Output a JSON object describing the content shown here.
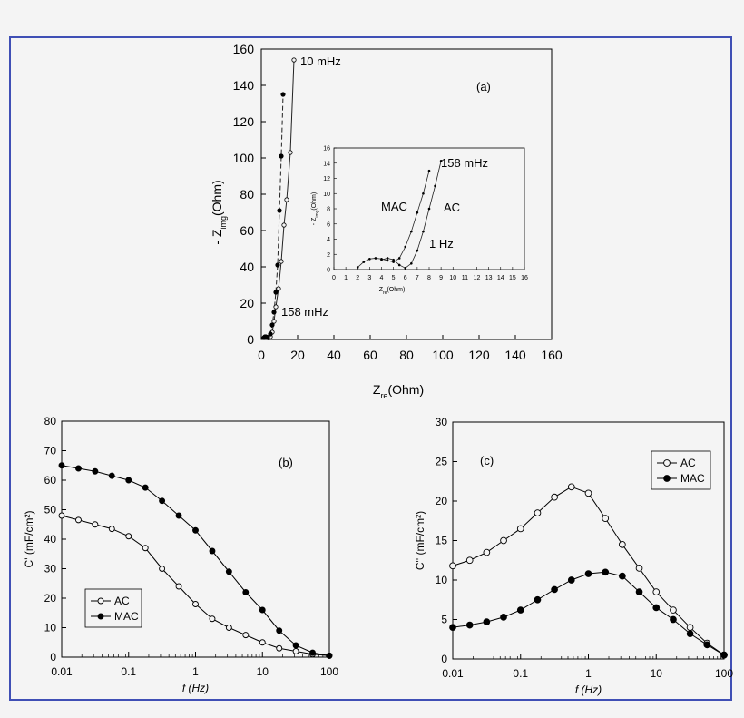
{
  "figure": {
    "frame_color": "#3f4fb5",
    "background": "#f4f4f4"
  },
  "chart_data": [
    {
      "id": "a",
      "type": "line",
      "panel_label": "(a)",
      "xlabel_main": "Z",
      "xlabel_sub": "re",
      "xlabel_unit": "(Ohm)",
      "ylabel_main": "- Z",
      "ylabel_sub": "img",
      "ylabel_unit": "(Ohm)",
      "xlim": [
        0,
        160
      ],
      "ylim": [
        0,
        160
      ],
      "xticks": [
        0,
        20,
        40,
        60,
        80,
        100,
        120,
        140,
        160
      ],
      "yticks": [
        0,
        20,
        40,
        60,
        80,
        100,
        120,
        140,
        160
      ],
      "series": [
        {
          "name": "AC",
          "marker": "open",
          "x": [
            2,
            3,
            4,
            5,
            6,
            7,
            8,
            9.5,
            11,
            12.5,
            14,
            16,
            18
          ],
          "y": [
            1.5,
            1.2,
            0.8,
            1.5,
            4,
            10,
            18,
            28,
            43,
            63,
            77,
            103,
            154
          ]
        },
        {
          "name": "MAC",
          "marker": "filled",
          "x": [
            1.5,
            2.5,
            3.5,
            5,
            6,
            7,
            8,
            9,
            10,
            11,
            12
          ],
          "y": [
            1,
            1.5,
            1.2,
            3,
            8,
            15,
            26,
            41,
            71,
            101,
            135
          ]
        }
      ],
      "annotations": [
        {
          "text": "10 mHz"
        },
        {
          "text": "158 mHz"
        }
      ],
      "inset": {
        "xlabel_main": "Z",
        "xlabel_sub": "re",
        "xlabel_unit": "(Ohm)",
        "ylabel_main": "- Z",
        "ylabel_sub": "img",
        "ylabel_unit": "(Ohm)",
        "xlim": [
          0,
          16
        ],
        "ylim": [
          0,
          16
        ],
        "xticks": [
          0,
          1,
          2,
          3,
          4,
          5,
          6,
          7,
          8,
          9,
          10,
          11,
          12,
          13,
          14,
          15,
          16
        ],
        "yticks": [
          0,
          2,
          4,
          6,
          8,
          10,
          12,
          14,
          16
        ],
        "series": [
          {
            "name": "MAC",
            "x": [
              2,
              2.5,
              3,
              3.5,
              4,
              4.5,
              5,
              5.5,
              6,
              6.5,
              7,
              7.5,
              8
            ],
            "y": [
              0.3,
              1.0,
              1.4,
              1.5,
              1.4,
              1.2,
              1.0,
              1.5,
              3.0,
              5.0,
              7.5,
              10.0,
              13.0
            ]
          },
          {
            "name": "AC",
            "x": [
              4,
              4.5,
              5,
              5.5,
              6,
              6.5,
              7,
              7.5,
              8,
              8.5,
              9
            ],
            "y": [
              1.3,
              1.5,
              1.3,
              0.6,
              0.2,
              0.8,
              2.5,
              5.0,
              8.0,
              11.0,
              14.3
            ]
          }
        ],
        "labels": [
          {
            "text": "MAC"
          },
          {
            "text": "AC"
          },
          {
            "text": "158 mHz"
          },
          {
            "text": "1 Hz"
          }
        ]
      }
    },
    {
      "id": "b",
      "type": "line",
      "panel_label": "(b)",
      "xscale": "log",
      "xlabel": "f (Hz)",
      "ylabel": "C' (mF/cm²)",
      "xlim": [
        0.01,
        100
      ],
      "ylim": [
        0,
        80
      ],
      "xticks": [
        0.01,
        0.1,
        1,
        10,
        100
      ],
      "xticklabels": [
        "0.01",
        "0.1",
        "1",
        "10",
        "100"
      ],
      "yticks": [
        0,
        10,
        20,
        30,
        40,
        50,
        60,
        70,
        80
      ],
      "legend": "bottom-left",
      "series": [
        {
          "name": "AC",
          "marker": "open",
          "x": [
            0.01,
            0.0178,
            0.0316,
            0.0562,
            0.1,
            0.178,
            0.316,
            0.562,
            1,
            1.78,
            3.16,
            5.62,
            10,
            17.8,
            31.6,
            56.2,
            100
          ],
          "y": [
            48,
            46.5,
            45,
            43.5,
            41,
            37,
            30,
            24,
            18,
            13,
            10,
            7.5,
            5,
            3,
            2,
            1,
            0.5
          ]
        },
        {
          "name": "MAC",
          "marker": "filled",
          "x": [
            0.01,
            0.0178,
            0.0316,
            0.0562,
            0.1,
            0.178,
            0.316,
            0.562,
            1,
            1.78,
            3.16,
            5.62,
            10,
            17.8,
            31.6,
            56.2,
            100
          ],
          "y": [
            65,
            64,
            63,
            61.5,
            60,
            57.5,
            53,
            48,
            43,
            36,
            29,
            22,
            16,
            9,
            4,
            1.5,
            0.5
          ]
        }
      ]
    },
    {
      "id": "c",
      "type": "line",
      "panel_label": "(c)",
      "xscale": "log",
      "xlabel": "f (Hz)",
      "ylabel": "C'' (mF/cm²)",
      "xlim": [
        0.01,
        100
      ],
      "ylim": [
        0,
        30
      ],
      "xticks": [
        0.01,
        0.1,
        1,
        10,
        100
      ],
      "xticklabels": [
        "0.01",
        "0.1",
        "1",
        "10",
        "100"
      ],
      "yticks": [
        0,
        5,
        10,
        15,
        20,
        25,
        30
      ],
      "legend": "top-right",
      "series": [
        {
          "name": "AC",
          "marker": "open",
          "x": [
            0.01,
            0.0178,
            0.0316,
            0.0562,
            0.1,
            0.178,
            0.316,
            0.562,
            1,
            1.78,
            3.16,
            5.62,
            10,
            17.8,
            31.6,
            56.2,
            100
          ],
          "y": [
            11.8,
            12.5,
            13.5,
            15.0,
            16.5,
            18.5,
            20.5,
            21.8,
            21.0,
            17.8,
            14.5,
            11.5,
            8.5,
            6.2,
            4.0,
            2.0,
            0.5
          ]
        },
        {
          "name": "MAC",
          "marker": "filled",
          "x": [
            0.01,
            0.0178,
            0.0316,
            0.0562,
            0.1,
            0.178,
            0.316,
            0.562,
            1,
            1.78,
            3.16,
            5.62,
            10,
            17.8,
            31.6,
            56.2,
            100
          ],
          "y": [
            4.0,
            4.3,
            4.7,
            5.3,
            6.2,
            7.5,
            8.8,
            10.0,
            10.8,
            11.0,
            10.5,
            8.5,
            6.5,
            5.0,
            3.2,
            1.8,
            0.5
          ]
        }
      ]
    }
  ]
}
